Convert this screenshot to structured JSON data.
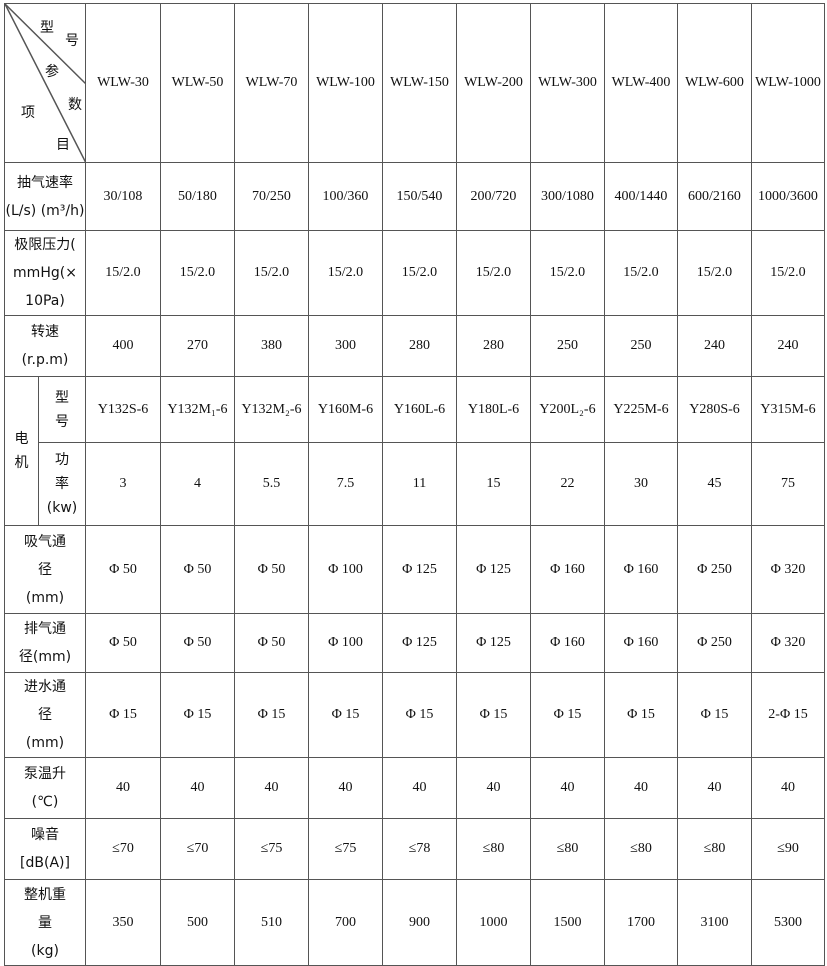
{
  "header": {
    "corner": {
      "model_chars": [
        "型",
        "号"
      ],
      "param_chars": [
        "参",
        "数"
      ],
      "item_chars": [
        "项",
        "目"
      ]
    },
    "models": [
      "WLW-30",
      "WLW-50",
      "WLW-70",
      "WLW-100",
      "WLW-150",
      "WLW-200",
      "WLW-300",
      "WLW-400",
      "WLW-600",
      "WLW-1000"
    ]
  },
  "rows": [
    {
      "label": [
        "抽气速率",
        "(L/s) (m³/h)"
      ],
      "values": [
        "30/108",
        "50/180",
        "70/250",
        "100/360",
        "150/540",
        "200/720",
        "300/1080",
        "400/1440",
        "600/2160",
        "1000/3600"
      ]
    },
    {
      "label": [
        "极限压力(",
        "mmHg(×",
        "10Pa)"
      ],
      "values": [
        "15/2.0",
        "15/2.0",
        "15/2.0",
        "15/2.0",
        "15/2.0",
        "15/2.0",
        "15/2.0",
        "15/2.0",
        "15/2.0",
        "15/2.0"
      ]
    },
    {
      "label": [
        "转速",
        "(r.p.m)"
      ],
      "values": [
        "400",
        "270",
        "380",
        "300",
        "280",
        "280",
        "250",
        "250",
        "240",
        "240"
      ]
    }
  ],
  "motor": {
    "group_label": [
      "电",
      "机"
    ],
    "rows": [
      {
        "label": [
          "型",
          "号"
        ],
        "values": [
          "Y132S-6",
          "Y132M₁-6",
          "Y132M₂-6",
          "Y160M-6",
          "Y160L-6",
          "Y180L-6",
          "Y200L₂-6",
          "Y225M-6",
          "Y280S-6",
          "Y315M-6"
        ]
      },
      {
        "label": [
          "功",
          "率",
          "(kw)"
        ],
        "values": [
          "3",
          "4",
          "5.5",
          "7.5",
          "11",
          "15",
          "22",
          "30",
          "45",
          "75"
        ]
      }
    ]
  },
  "rows2": [
    {
      "label": [
        "吸气通",
        "径",
        "(mm)"
      ],
      "values": [
        "Φ 50",
        "Φ 50",
        "Φ 50",
        "Φ 100",
        "Φ 125",
        "Φ 125",
        "Φ 160",
        "Φ 160",
        "Φ 250",
        "Φ 320"
      ]
    },
    {
      "label": [
        "排气通",
        "径(mm)"
      ],
      "values": [
        "Φ 50",
        "Φ 50",
        "Φ 50",
        "Φ 100",
        "Φ 125",
        "Φ 125",
        "Φ 160",
        "Φ 160",
        "Φ 250",
        "Φ 320"
      ]
    },
    {
      "label": [
        "进水通",
        "径",
        "(mm)"
      ],
      "values": [
        "Φ 15",
        "Φ 15",
        "Φ 15",
        "Φ 15",
        "Φ 15",
        "Φ 15",
        "Φ 15",
        "Φ 15",
        "Φ 15",
        "2-Φ 15"
      ]
    },
    {
      "label": [
        "泵温升",
        "(℃)"
      ],
      "values": [
        "40",
        "40",
        "40",
        "40",
        "40",
        "40",
        "40",
        "40",
        "40",
        "40"
      ]
    },
    {
      "label": [
        "噪音",
        "[dB(A)]"
      ],
      "values": [
        "≤70",
        "≤70",
        "≤75",
        "≤75",
        "≤78",
        "≤80",
        "≤80",
        "≤80",
        "≤80",
        "≤90"
      ]
    },
    {
      "label": [
        "整机重",
        "量",
        "(kg)"
      ],
      "values": [
        "350",
        "500",
        "510",
        "700",
        "900",
        "1000",
        "1500",
        "1700",
        "3100",
        "5300"
      ]
    }
  ]
}
